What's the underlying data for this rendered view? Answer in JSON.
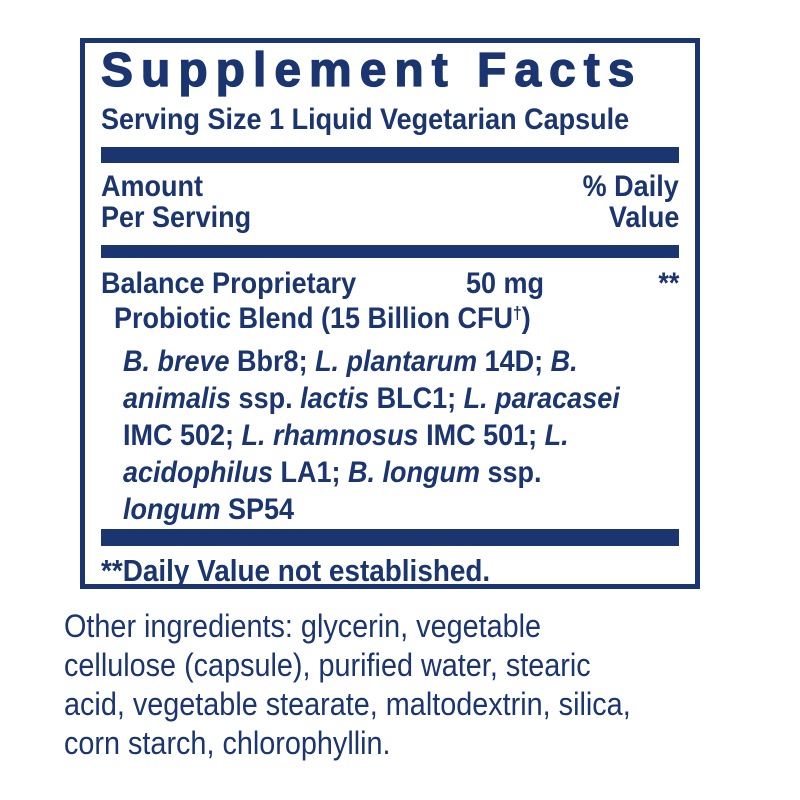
{
  "colors": {
    "ink": "#1a356f",
    "background": "#ffffff"
  },
  "panel": {
    "title": "Supplement Facts",
    "serving_size": "Serving Size 1 Liquid Vegetarian Capsule",
    "header": {
      "amount_line1": "Amount",
      "amount_line2": "Per Serving",
      "daily_value_line1": "% Daily",
      "daily_value_line2": "Value"
    },
    "blend": {
      "name_line1": "Balance Proprietary",
      "amount": "50 mg",
      "daily_value": "**",
      "name_line2_segments": [
        {
          "text": "Probiotic Blend (15 Billion CFU",
          "style": "normal"
        },
        {
          "text": "†",
          "style": "sup"
        },
        {
          "text": ")",
          "style": "normal"
        }
      ],
      "strain_lines": [
        [
          {
            "text": "B. breve",
            "style": "italic"
          },
          {
            "text": " Bbr8; ",
            "style": "normal"
          },
          {
            "text": "L. plantarum",
            "style": "italic"
          },
          {
            "text": " 14D; ",
            "style": "normal"
          },
          {
            "text": "B.",
            "style": "italic"
          }
        ],
        [
          {
            "text": "animalis",
            "style": "italic"
          },
          {
            "text": " ssp. ",
            "style": "normal"
          },
          {
            "text": "lactis",
            "style": "italic"
          },
          {
            "text": " BLC1; ",
            "style": "normal"
          },
          {
            "text": "L. paracasei",
            "style": "italic"
          }
        ],
        [
          {
            "text": "IMC 502; ",
            "style": "normal"
          },
          {
            "text": "L. rhamnosus",
            "style": "italic"
          },
          {
            "text": " IMC 501; ",
            "style": "normal"
          },
          {
            "text": "L.",
            "style": "italic"
          }
        ],
        [
          {
            "text": "acidophilus",
            "style": "italic"
          },
          {
            "text": " LA1; ",
            "style": "normal"
          },
          {
            "text": "B. longum",
            "style": "italic"
          },
          {
            "text": " ssp.",
            "style": "normal"
          }
        ],
        [
          {
            "text": "longum",
            "style": "italic"
          },
          {
            "text": " SP54",
            "style": "normal"
          }
        ]
      ]
    },
    "footnote": "**Daily Value not established."
  },
  "other_ingredients": {
    "lines": [
      "Other ingredients: glycerin, vegetable",
      "cellulose (capsule), purified water, stearic",
      "acid, vegetable stearate, maltodextrin, silica,",
      "corn starch, chlorophyllin."
    ]
  }
}
